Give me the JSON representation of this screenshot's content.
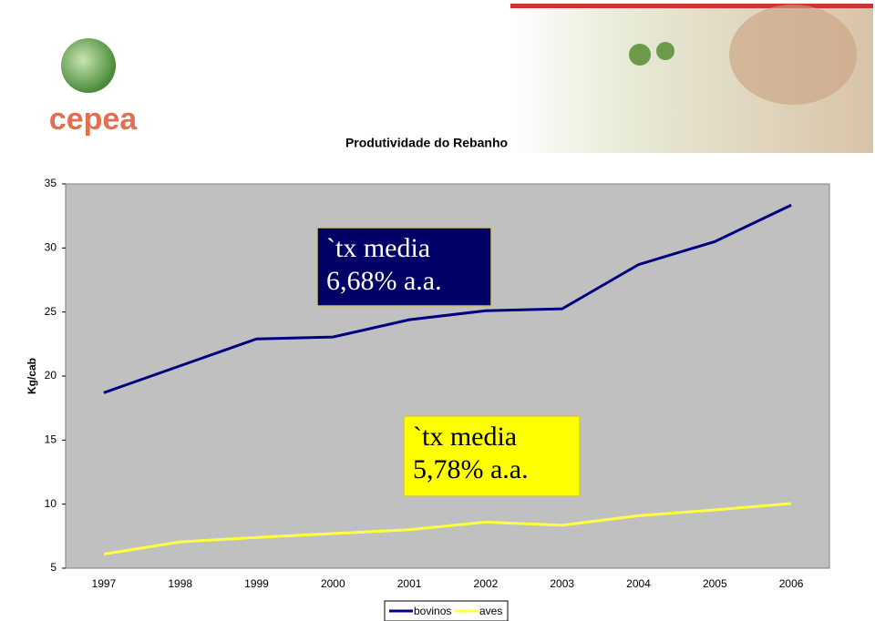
{
  "logo": "cepea",
  "chart_data": {
    "type": "line",
    "title": "Produtividade do Rebanho",
    "y_label": "Kg/cab",
    "categories": [
      "1997",
      "1998",
      "1999",
      "2000",
      "2001",
      "2002",
      "2003",
      "2004",
      "2005",
      "2006"
    ],
    "series": [
      {
        "name": "bovinos",
        "color": "#000080",
        "values": [
          18.7,
          20.8,
          22.9,
          23.05,
          24.4,
          25.1,
          25.25,
          28.7,
          30.5,
          33.35
        ]
      },
      {
        "name": "aves",
        "color": "#ffff40",
        "values": [
          6.1,
          7.05,
          7.4,
          7.7,
          8.0,
          8.6,
          8.35,
          9.1,
          9.55,
          10.05
        ]
      }
    ],
    "ylim": [
      5,
      35
    ],
    "yticks": [
      5,
      10,
      15,
      20,
      25,
      30,
      35
    ],
    "grid": false,
    "legend": "bottom",
    "annotations": [
      {
        "lines": [
          "`tx media",
          "6,68% a.a."
        ],
        "background": "#000066",
        "color": "#ffffff"
      },
      {
        "lines": [
          "`tx media",
          "5,78% a.a."
        ],
        "background": "#ffff00",
        "color": "#000000"
      }
    ]
  }
}
